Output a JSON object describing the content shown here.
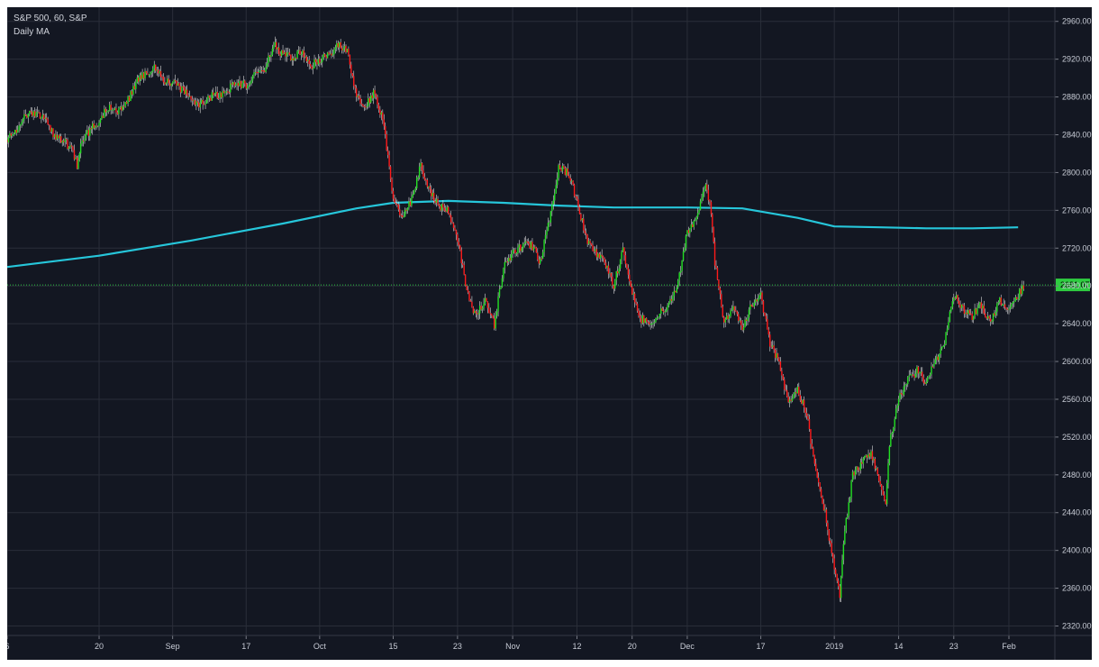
{
  "chart": {
    "title": "S&P 500, 60, S&P",
    "subtitle": "Daily MA"
  },
  "colors": {
    "background": "#131722",
    "grid": "#2a2e39",
    "up": "#22e022",
    "down": "#ff1a1a",
    "wick": "#d9d9d9",
    "ma": "#26c6da",
    "price_line": "#2ecc40",
    "badge": "#2ecc40"
  },
  "chart_data": {
    "type": "candlestick",
    "title": "S&P 500, 60, S&P",
    "subtitle": "Daily MA",
    "ylim": [
      2310,
      2975
    ],
    "y_ticks": [
      "2960.00",
      "2920.00",
      "2880.00",
      "2840.00",
      "2800.00",
      "2760.00",
      "2720.00",
      "2680.00",
      "2640.00",
      "2600.00",
      "2560.00",
      "2520.00",
      "2480.00",
      "2440.00",
      "2400.00",
      "2360.00",
      "2320.00"
    ],
    "x_ticks": [
      "6",
      "20",
      "Sep",
      "17",
      "Oct",
      "15",
      "23",
      "Nov",
      "12",
      "20",
      "Dec",
      "17",
      "2019",
      "14",
      "23",
      "Feb"
    ],
    "x_tick_units": [
      0,
      10,
      18,
      26,
      34,
      42,
      49,
      55,
      62,
      68,
      74,
      82,
      90,
      97,
      103,
      109
    ],
    "x_range": [
      0,
      114
    ],
    "price_path": [
      [
        0,
        2835
      ],
      [
        1,
        2845
      ],
      [
        2,
        2862
      ],
      [
        3,
        2862
      ],
      [
        4,
        2860
      ],
      [
        5,
        2840
      ],
      [
        6,
        2835
      ],
      [
        7,
        2825
      ],
      [
        7.6,
        2808
      ],
      [
        8,
        2830
      ],
      [
        9,
        2845
      ],
      [
        10,
        2855
      ],
      [
        11,
        2870
      ],
      [
        12,
        2863
      ],
      [
        13,
        2873
      ],
      [
        14,
        2895
      ],
      [
        15,
        2905
      ],
      [
        16,
        2912
      ],
      [
        17,
        2898
      ],
      [
        18,
        2895
      ],
      [
        19,
        2888
      ],
      [
        20,
        2878
      ],
      [
        21,
        2872
      ],
      [
        22,
        2880
      ],
      [
        23,
        2882
      ],
      [
        24,
        2888
      ],
      [
        25,
        2895
      ],
      [
        26,
        2892
      ],
      [
        27,
        2905
      ],
      [
        28,
        2908
      ],
      [
        29,
        2935
      ],
      [
        30,
        2925
      ],
      [
        31,
        2922
      ],
      [
        32,
        2928
      ],
      [
        33,
        2912
      ],
      [
        34,
        2920
      ],
      [
        35,
        2925
      ],
      [
        36,
        2935
      ],
      [
        37,
        2928
      ],
      [
        38,
        2880
      ],
      [
        39,
        2870
      ],
      [
        40,
        2885
      ],
      [
        41,
        2850
      ],
      [
        42,
        2770
      ],
      [
        43,
        2755
      ],
      [
        44,
        2770
      ],
      [
        45,
        2808
      ],
      [
        46,
        2780
      ],
      [
        47,
        2765
      ],
      [
        48,
        2760
      ],
      [
        49,
        2730
      ],
      [
        50,
        2675
      ],
      [
        51,
        2648
      ],
      [
        52,
        2665
      ],
      [
        53,
        2638
      ],
      [
        54,
        2700
      ],
      [
        55,
        2715
      ],
      [
        56,
        2722
      ],
      [
        57,
        2725
      ],
      [
        58,
        2705
      ],
      [
        59,
        2750
      ],
      [
        60,
        2805
      ],
      [
        61,
        2800
      ],
      [
        62,
        2770
      ],
      [
        63,
        2730
      ],
      [
        64,
        2715
      ],
      [
        65,
        2705
      ],
      [
        66,
        2680
      ],
      [
        67,
        2720
      ],
      [
        68,
        2672
      ],
      [
        69,
        2645
      ],
      [
        70,
        2640
      ],
      [
        71,
        2652
      ],
      [
        72,
        2660
      ],
      [
        73,
        2682
      ],
      [
        74,
        2738
      ],
      [
        75,
        2752
      ],
      [
        76,
        2790
      ],
      [
        76.6,
        2760
      ],
      [
        77,
        2705
      ],
      [
        78,
        2640
      ],
      [
        79,
        2660
      ],
      [
        80,
        2632
      ],
      [
        81,
        2660
      ],
      [
        82,
        2670
      ],
      [
        83,
        2618
      ],
      [
        84,
        2600
      ],
      [
        85,
        2555
      ],
      [
        86,
        2570
      ],
      [
        87,
        2545
      ],
      [
        88,
        2480
      ],
      [
        89,
        2440
      ],
      [
        90,
        2380
      ],
      [
        90.6,
        2351
      ],
      [
        91,
        2410
      ],
      [
        92,
        2480
      ],
      [
        93,
        2492
      ],
      [
        94,
        2505
      ],
      [
        95,
        2470
      ],
      [
        95.6,
        2448
      ],
      [
        96,
        2512
      ],
      [
        97,
        2560
      ],
      [
        98,
        2580
      ],
      [
        99,
        2590
      ],
      [
        100,
        2578
      ],
      [
        101,
        2600
      ],
      [
        102,
        2620
      ],
      [
        103,
        2670
      ],
      [
        104,
        2655
      ],
      [
        105,
        2648
      ],
      [
        106,
        2660
      ],
      [
        107,
        2640
      ],
      [
        108,
        2665
      ],
      [
        109,
        2655
      ],
      [
        110,
        2670
      ],
      [
        110.6,
        2681.07
      ]
    ],
    "moving_average": [
      [
        0,
        2700
      ],
      [
        10,
        2712
      ],
      [
        20,
        2728
      ],
      [
        30,
        2746
      ],
      [
        38,
        2762
      ],
      [
        42,
        2768
      ],
      [
        48,
        2770
      ],
      [
        54,
        2768
      ],
      [
        60,
        2765
      ],
      [
        66,
        2763
      ],
      [
        74,
        2763
      ],
      [
        80,
        2762
      ],
      [
        86,
        2752
      ],
      [
        90,
        2743
      ],
      [
        95,
        2742
      ],
      [
        100,
        2741
      ],
      [
        105,
        2741
      ],
      [
        110,
        2742
      ]
    ],
    "last_price": 2681.07,
    "last_price_label": "2681.07",
    "grid": true
  }
}
